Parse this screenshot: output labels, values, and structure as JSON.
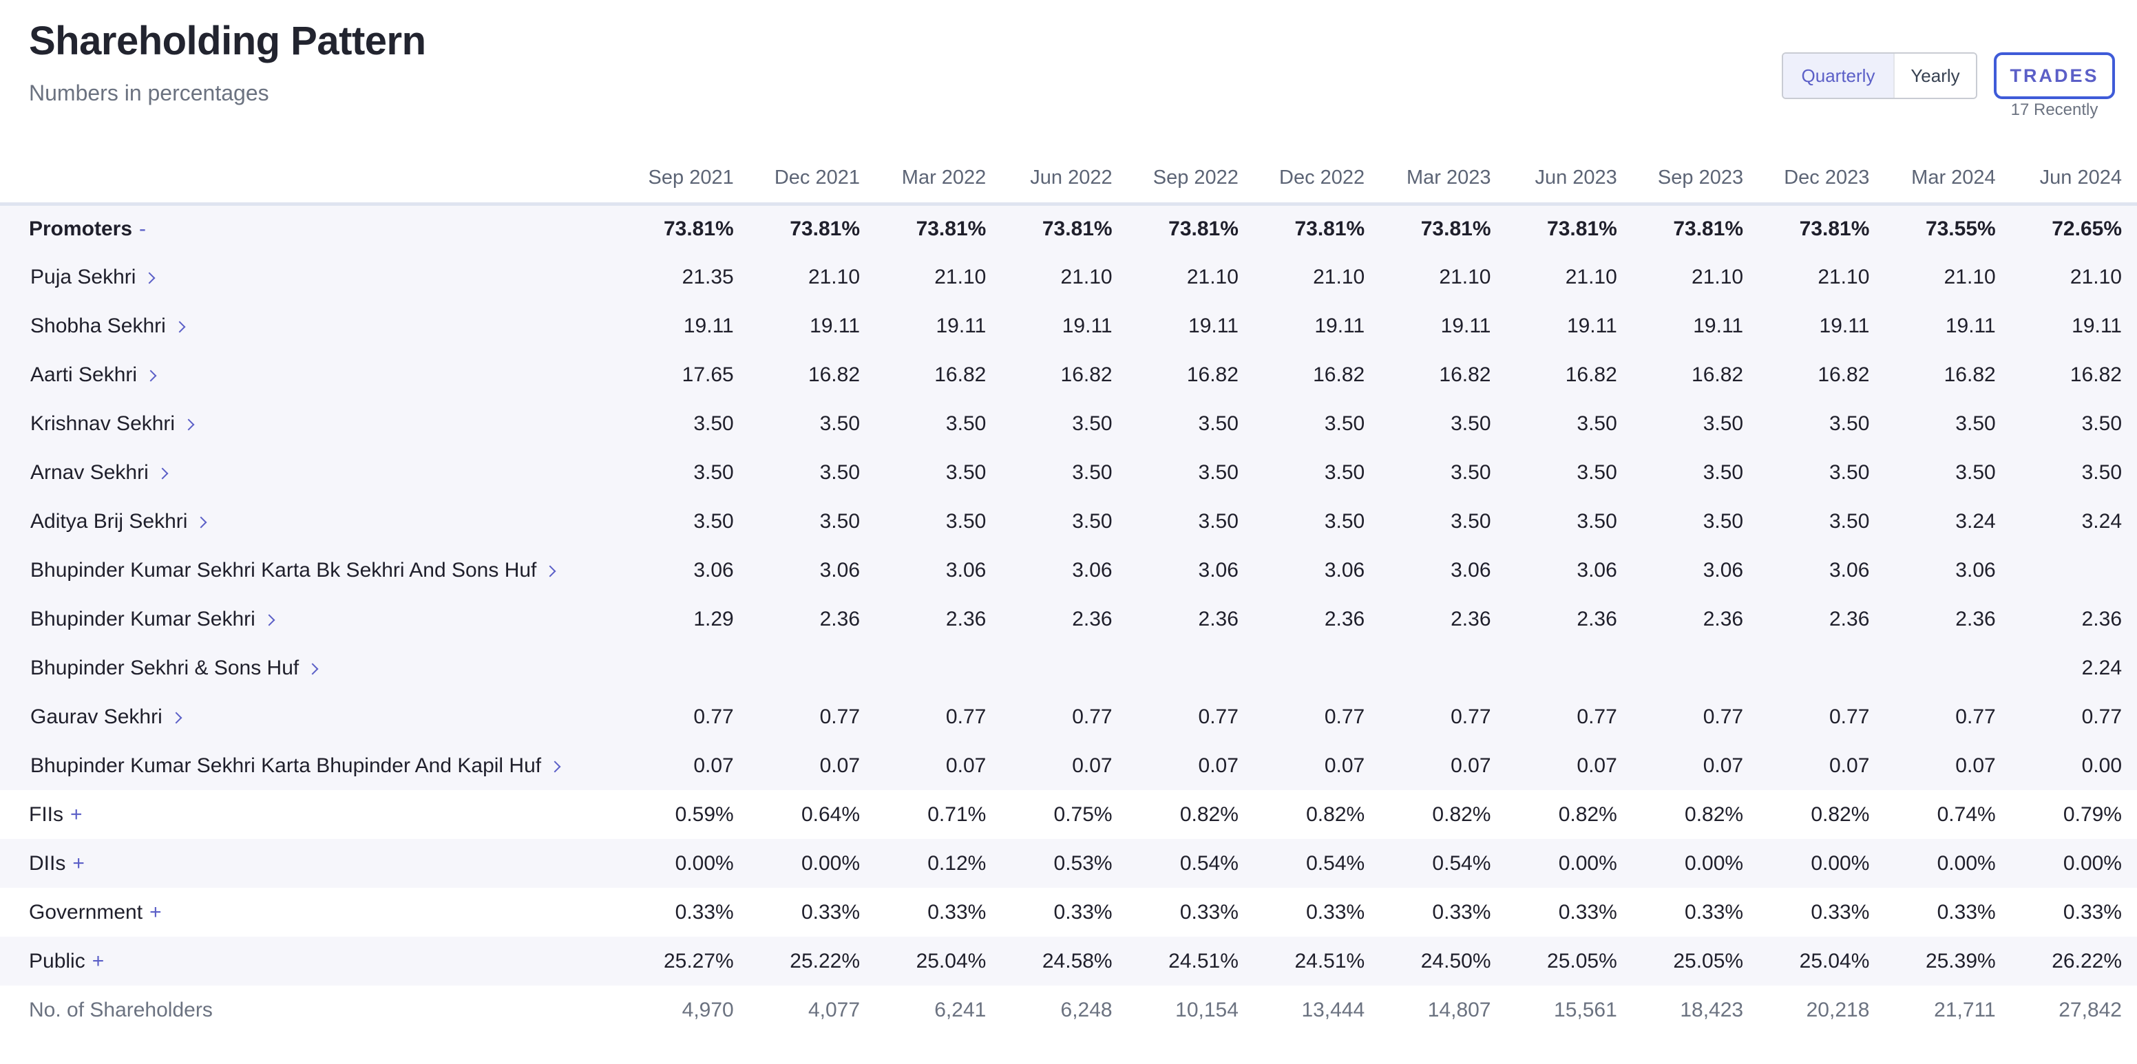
{
  "header": {
    "title": "Shareholding Pattern",
    "subtitle": "Numbers in percentages"
  },
  "period_toggle": {
    "options": [
      "Quarterly",
      "Yearly"
    ],
    "selected": "Quarterly"
  },
  "trades": {
    "label": "TRADES",
    "caption": "17 Recently"
  },
  "table": {
    "columns": [
      "Sep 2021",
      "Dec 2021",
      "Mar 2022",
      "Jun 2022",
      "Sep 2022",
      "Dec 2022",
      "Mar 2023",
      "Jun 2023",
      "Sep 2023",
      "Dec 2023",
      "Mar 2024",
      "Jun 2024"
    ],
    "rows": [
      {
        "label": "Promoters",
        "kind": "group",
        "expander": "-",
        "values": [
          "73.81%",
          "73.81%",
          "73.81%",
          "73.81%",
          "73.81%",
          "73.81%",
          "73.81%",
          "73.81%",
          "73.81%",
          "73.81%",
          "73.55%",
          "72.65%"
        ]
      },
      {
        "label": "Puja Sekhri",
        "kind": "sub",
        "values": [
          "21.35",
          "21.10",
          "21.10",
          "21.10",
          "21.10",
          "21.10",
          "21.10",
          "21.10",
          "21.10",
          "21.10",
          "21.10",
          "21.10"
        ]
      },
      {
        "label": "Shobha Sekhri",
        "kind": "sub",
        "values": [
          "19.11",
          "19.11",
          "19.11",
          "19.11",
          "19.11",
          "19.11",
          "19.11",
          "19.11",
          "19.11",
          "19.11",
          "19.11",
          "19.11"
        ]
      },
      {
        "label": "Aarti Sekhri",
        "kind": "sub",
        "values": [
          "17.65",
          "16.82",
          "16.82",
          "16.82",
          "16.82",
          "16.82",
          "16.82",
          "16.82",
          "16.82",
          "16.82",
          "16.82",
          "16.82"
        ]
      },
      {
        "label": "Krishnav Sekhri",
        "kind": "sub",
        "values": [
          "3.50",
          "3.50",
          "3.50",
          "3.50",
          "3.50",
          "3.50",
          "3.50",
          "3.50",
          "3.50",
          "3.50",
          "3.50",
          "3.50"
        ]
      },
      {
        "label": "Arnav Sekhri",
        "kind": "sub",
        "values": [
          "3.50",
          "3.50",
          "3.50",
          "3.50",
          "3.50",
          "3.50",
          "3.50",
          "3.50",
          "3.50",
          "3.50",
          "3.50",
          "3.50"
        ]
      },
      {
        "label": "Aditya Brij Sekhri",
        "kind": "sub",
        "values": [
          "3.50",
          "3.50",
          "3.50",
          "3.50",
          "3.50",
          "3.50",
          "3.50",
          "3.50",
          "3.50",
          "3.50",
          "3.24",
          "3.24"
        ]
      },
      {
        "label": "Bhupinder Kumar Sekhri Karta Bk Sekhri And Sons Huf",
        "kind": "sub",
        "values": [
          "3.06",
          "3.06",
          "3.06",
          "3.06",
          "3.06",
          "3.06",
          "3.06",
          "3.06",
          "3.06",
          "3.06",
          "3.06",
          ""
        ]
      },
      {
        "label": "Bhupinder Kumar Sekhri",
        "kind": "sub",
        "values": [
          "1.29",
          "2.36",
          "2.36",
          "2.36",
          "2.36",
          "2.36",
          "2.36",
          "2.36",
          "2.36",
          "2.36",
          "2.36",
          "2.36"
        ]
      },
      {
        "label": "Bhupinder Sekhri & Sons Huf",
        "kind": "sub",
        "values": [
          "",
          "",
          "",
          "",
          "",
          "",
          "",
          "",
          "",
          "",
          "",
          "2.24"
        ]
      },
      {
        "label": "Gaurav Sekhri",
        "kind": "sub",
        "values": [
          "0.77",
          "0.77",
          "0.77",
          "0.77",
          "0.77",
          "0.77",
          "0.77",
          "0.77",
          "0.77",
          "0.77",
          "0.77",
          "0.77"
        ]
      },
      {
        "label": "Bhupinder Kumar Sekhri Karta Bhupinder And Kapil Huf",
        "kind": "sub",
        "values": [
          "0.07",
          "0.07",
          "0.07",
          "0.07",
          "0.07",
          "0.07",
          "0.07",
          "0.07",
          "0.07",
          "0.07",
          "0.07",
          "0.00"
        ]
      },
      {
        "label": "FIIs",
        "kind": "group",
        "expander": "+",
        "values": [
          "0.59%",
          "0.64%",
          "0.71%",
          "0.75%",
          "0.82%",
          "0.82%",
          "0.82%",
          "0.82%",
          "0.82%",
          "0.82%",
          "0.74%",
          "0.79%"
        ]
      },
      {
        "label": "DIIs",
        "kind": "group",
        "expander": "+",
        "values": [
          "0.00%",
          "0.00%",
          "0.12%",
          "0.53%",
          "0.54%",
          "0.54%",
          "0.54%",
          "0.00%",
          "0.00%",
          "0.00%",
          "0.00%",
          "0.00%"
        ]
      },
      {
        "label": "Government",
        "kind": "group",
        "expander": "+",
        "values": [
          "0.33%",
          "0.33%",
          "0.33%",
          "0.33%",
          "0.33%",
          "0.33%",
          "0.33%",
          "0.33%",
          "0.33%",
          "0.33%",
          "0.33%",
          "0.33%"
        ]
      },
      {
        "label": "Public",
        "kind": "group",
        "expander": "+",
        "values": [
          "25.27%",
          "25.22%",
          "25.04%",
          "24.58%",
          "24.51%",
          "24.51%",
          "24.50%",
          "25.05%",
          "25.05%",
          "25.04%",
          "25.39%",
          "26.22%"
        ]
      },
      {
        "label": "No. of Shareholders",
        "kind": "count",
        "values": [
          "4,970",
          "4,077",
          "6,241",
          "6,248",
          "10,154",
          "13,444",
          "14,807",
          "15,561",
          "18,423",
          "20,218",
          "21,711",
          "27,842"
        ]
      }
    ]
  }
}
